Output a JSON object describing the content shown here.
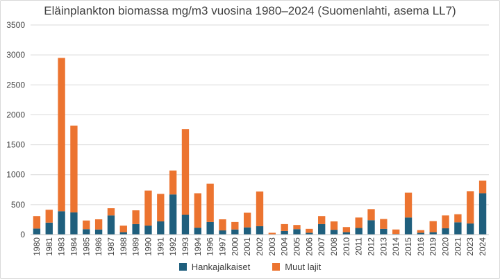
{
  "chart_data": {
    "type": "bar",
    "stacked": true,
    "title": "Eläinplankton biomassa mg/m3 vuosina 1980–2024 (Suomenlahti, asema LL7)",
    "xlabel": "",
    "ylabel": "",
    "ylim": [
      0,
      3500
    ],
    "yticks": [
      0,
      500,
      1000,
      1500,
      2000,
      2500,
      3000,
      3500
    ],
    "grid": true,
    "legend_position": "bottom",
    "categories": [
      "1980",
      "1981",
      "1983",
      "1984",
      "1985",
      "1986",
      "1987",
      "1988",
      "1989",
      "1990",
      "1991",
      "1992",
      "1993",
      "1994",
      "1996",
      "1997",
      "2000",
      "2001",
      "2002",
      "2003",
      "2004",
      "2005",
      "2006",
      "2007",
      "2008",
      "2010",
      "2011",
      "2012",
      "2013",
      "2014",
      "2015",
      "2016",
      "2019",
      "2020",
      "2021",
      "2023",
      "2024"
    ],
    "series": [
      {
        "name": "Hankajalkaiset",
        "color": "#1f5f7d",
        "values": [
          100,
          200,
          390,
          370,
          90,
          85,
          320,
          40,
          175,
          150,
          220,
          670,
          330,
          115,
          210,
          70,
          85,
          120,
          140,
          5,
          60,
          90,
          30,
          175,
          80,
          40,
          110,
          240,
          95,
          10,
          285,
          30,
          40,
          105,
          205,
          185,
          690
        ]
      },
      {
        "name": "Muut lajit",
        "color": "#ec7430",
        "values": [
          210,
          215,
          2560,
          1450,
          145,
          170,
          120,
          110,
          230,
          585,
          460,
          400,
          1430,
          575,
          640,
          185,
          125,
          245,
          580,
          25,
          115,
          70,
          65,
          135,
          140,
          85,
          175,
          185,
          165,
          75,
          415,
          45,
          185,
          215,
          135,
          540,
          210
        ]
      }
    ]
  }
}
